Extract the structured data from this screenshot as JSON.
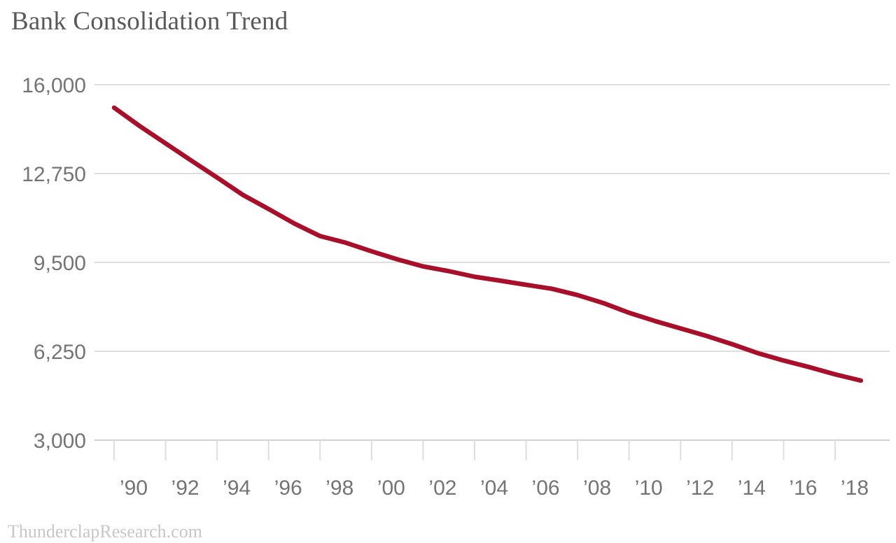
{
  "footer": {
    "text": "ThunderclapResearch.com"
  },
  "chart_data": {
    "type": "line",
    "title": "Bank Consolidation Trend",
    "xlabel": "",
    "ylabel": "",
    "x": [
      1990,
      1991,
      1992,
      1993,
      1994,
      1995,
      1996,
      1997,
      1998,
      1999,
      2000,
      2001,
      2002,
      2003,
      2004,
      2005,
      2006,
      2007,
      2008,
      2009,
      2010,
      2011,
      2012,
      2013,
      2014,
      2015,
      2016,
      2017,
      2018,
      2019
    ],
    "values": [
      15158,
      14482,
      13852,
      13220,
      12604,
      11970,
      11452,
      10922,
      10463,
      10220,
      9904,
      9613,
      9354,
      9181,
      8976,
      8833,
      8680,
      8534,
      8305,
      8012,
      7657,
      7357,
      7083,
      6812,
      6509,
      6182,
      5913,
      5670,
      5406,
      5177
    ],
    "xlim": [
      1990,
      2019
    ],
    "ylim": [
      3000,
      16000
    ],
    "y_ticks": [
      {
        "value": 16000,
        "label": "16,000"
      },
      {
        "value": 12750,
        "label": "12,750"
      },
      {
        "value": 9500,
        "label": "9,500"
      },
      {
        "value": 6250,
        "label": "6,250"
      },
      {
        "value": 3000,
        "label": "3,000"
      }
    ],
    "x_ticks": [
      {
        "year": 1990,
        "label": "’90"
      },
      {
        "year": 1992,
        "label": "’92"
      },
      {
        "year": 1994,
        "label": "’94"
      },
      {
        "year": 1996,
        "label": "’96"
      },
      {
        "year": 1998,
        "label": "’98"
      },
      {
        "year": 2000,
        "label": "’00"
      },
      {
        "year": 2002,
        "label": "’02"
      },
      {
        "year": 2004,
        "label": "’04"
      },
      {
        "year": 2006,
        "label": "’06"
      },
      {
        "year": 2008,
        "label": "’08"
      },
      {
        "year": 2010,
        "label": "’10"
      },
      {
        "year": 2012,
        "label": "’12"
      },
      {
        "year": 2014,
        "label": "’14"
      },
      {
        "year": 2016,
        "label": "’16"
      },
      {
        "year": 2018,
        "label": "’18"
      }
    ],
    "grid": "horizontal",
    "legend": "none",
    "line_color": "#A80F2A",
    "background": "#FFFFFF"
  }
}
